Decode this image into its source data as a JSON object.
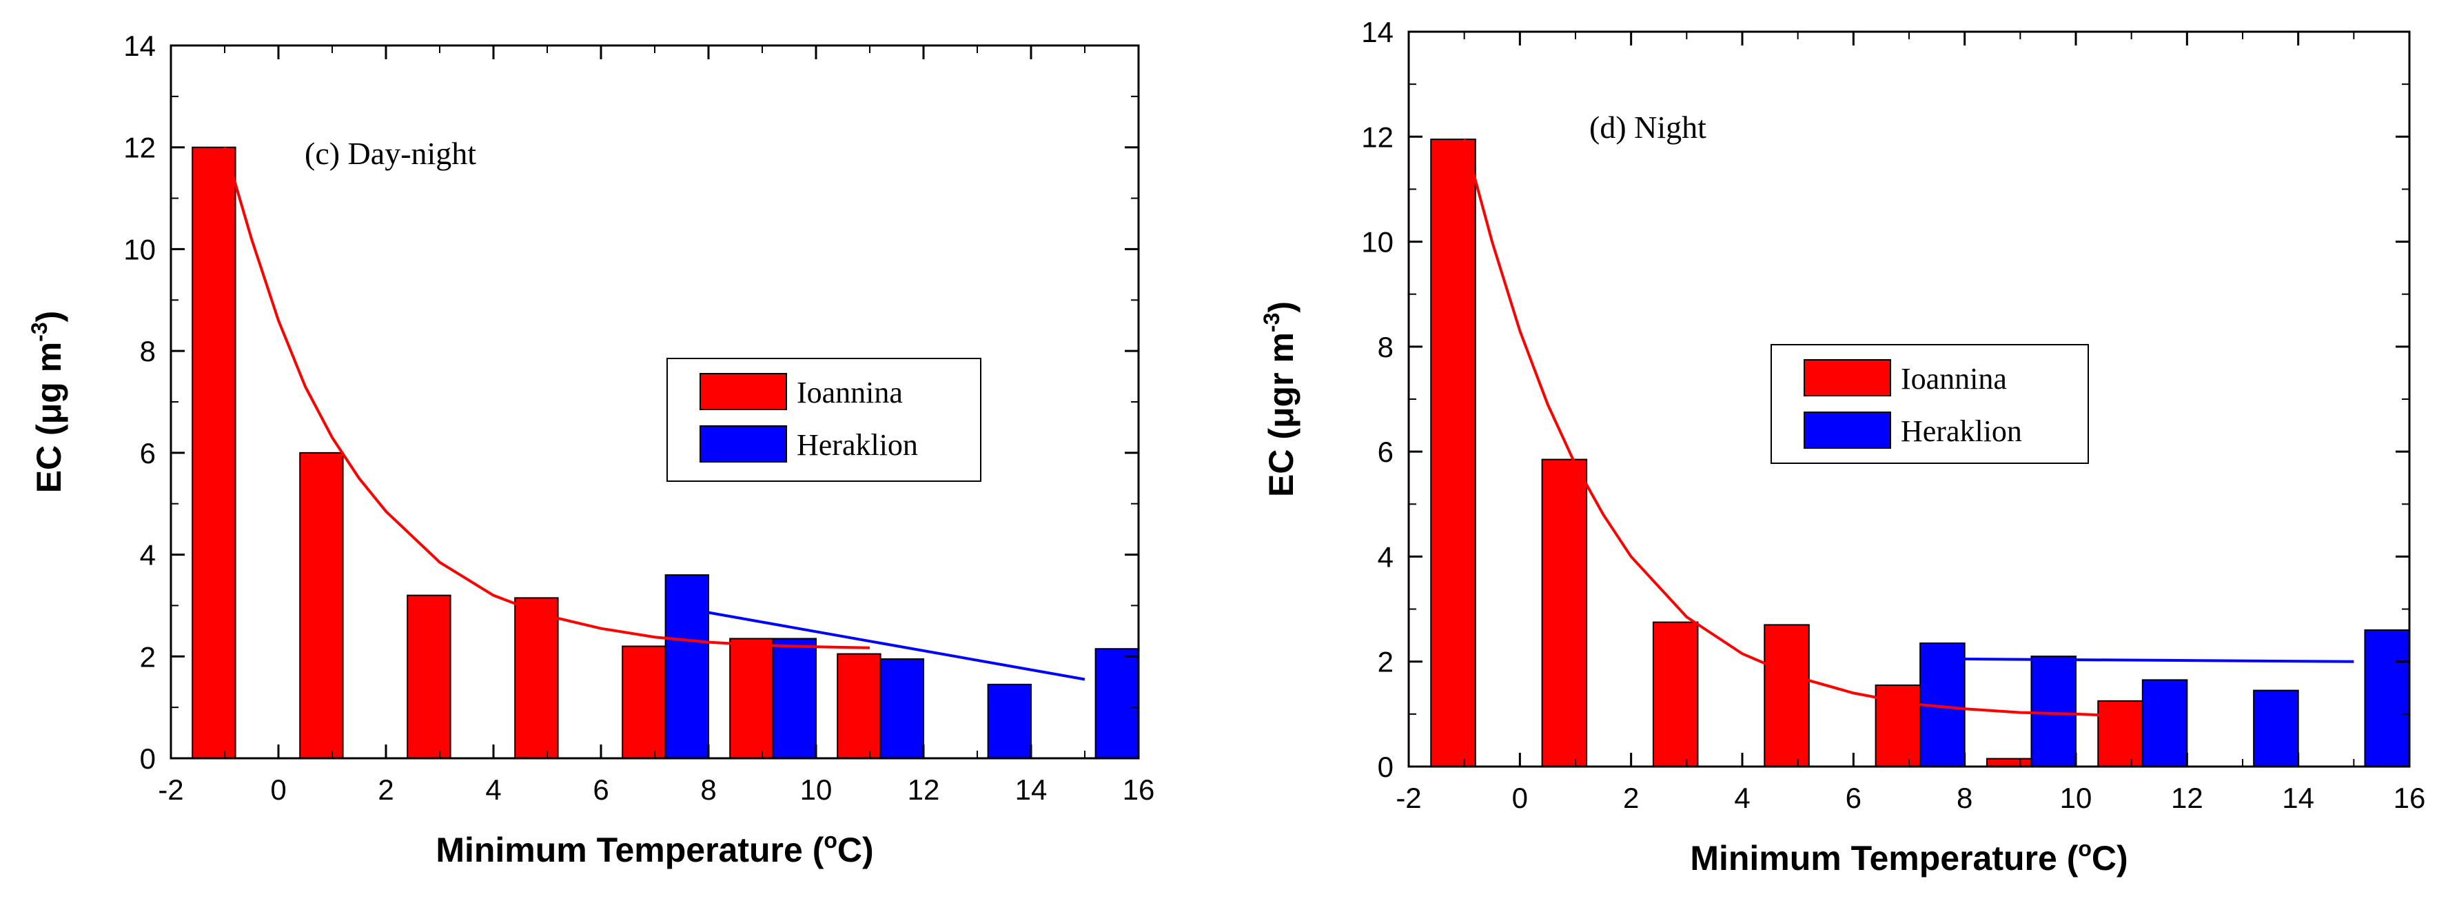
{
  "colors": {
    "ioannina": "#ff0000",
    "heraklion": "#0000ff",
    "axis": "#000000"
  },
  "chart_data": [
    {
      "type": "bar",
      "panel_label": "(c) Day-night",
      "xlabel_main": "Minimum Temperature (",
      "xlabel_sup": "o",
      "xlabel_end": "C)",
      "ylabel_main": "EC (μg m",
      "ylabel_sup": "-3",
      "ylabel_end": ")",
      "xlim": [
        -2,
        16
      ],
      "ylim": [
        0,
        14
      ],
      "xticks": [
        "-2",
        "0",
        "2",
        "4",
        "6",
        "8",
        "10",
        "12",
        "14",
        "16"
      ],
      "yticks": [
        "0",
        "2",
        "4",
        "6",
        "8",
        "10",
        "12",
        "14"
      ],
      "legend_position": "center-right",
      "series": [
        {
          "name": "Ioannina",
          "color": "#ff0000",
          "bars": [
            {
              "x": -1.6,
              "y": 12.0
            },
            {
              "x": 0.4,
              "y": 6.0
            },
            {
              "x": 2.4,
              "y": 3.2
            },
            {
              "x": 4.4,
              "y": 3.15
            },
            {
              "x": 6.4,
              "y": 2.2
            },
            {
              "x": 8.4,
              "y": 2.35
            },
            {
              "x": 10.4,
              "y": 2.05
            }
          ]
        },
        {
          "name": "Heraklion",
          "color": "#0000ff",
          "bars": [
            {
              "x": 7.2,
              "y": 3.6
            },
            {
              "x": 9.2,
              "y": 2.35
            },
            {
              "x": 11.2,
              "y": 1.95
            },
            {
              "x": 13.2,
              "y": 1.45
            },
            {
              "x": 15.2,
              "y": 2.15
            }
          ]
        }
      ],
      "fit_lines": [
        {
          "series": "Ioannina",
          "color": "#ff0000",
          "points": [
            [
              -1.0,
              12.0
            ],
            [
              -0.5,
              10.2
            ],
            [
              0,
              8.6
            ],
            [
              0.5,
              7.3
            ],
            [
              1,
              6.3
            ],
            [
              1.5,
              5.5
            ],
            [
              2,
              4.85
            ],
            [
              3,
              3.85
            ],
            [
              4,
              3.2
            ],
            [
              5,
              2.8
            ],
            [
              6,
              2.55
            ],
            [
              7,
              2.38
            ],
            [
              8,
              2.28
            ],
            [
              9,
              2.22
            ],
            [
              10,
              2.19
            ],
            [
              11,
              2.17
            ]
          ]
        },
        {
          "series": "Heraklion",
          "color": "#0000ff",
          "points": [
            [
              7.8,
              2.9
            ],
            [
              15.0,
              1.55
            ]
          ]
        }
      ]
    },
    {
      "type": "bar",
      "panel_label": "(d) Night",
      "xlabel_main": "Minimum Temperature (",
      "xlabel_sup": "o",
      "xlabel_end": "C)",
      "ylabel_main": "EC (μgr m",
      "ylabel_sup": "-3",
      "ylabel_end": ")",
      "xlim": [
        -2,
        16
      ],
      "ylim": [
        0,
        14
      ],
      "xticks": [
        "-2",
        "0",
        "2",
        "4",
        "6",
        "8",
        "10",
        "12",
        "14",
        "16"
      ],
      "yticks": [
        "0",
        "2",
        "4",
        "6",
        "8",
        "10",
        "12",
        "14"
      ],
      "legend_position": "center-right",
      "series": [
        {
          "name": "Ioannina",
          "color": "#ff0000",
          "bars": [
            {
              "x": -1.6,
              "y": 11.95
            },
            {
              "x": 0.4,
              "y": 5.85
            },
            {
              "x": 2.4,
              "y": 2.75
            },
            {
              "x": 4.4,
              "y": 2.7
            },
            {
              "x": 6.4,
              "y": 1.55
            },
            {
              "x": 8.4,
              "y": 0.15
            },
            {
              "x": 10.4,
              "y": 1.25
            }
          ]
        },
        {
          "name": "Heraklion",
          "color": "#0000ff",
          "bars": [
            {
              "x": 7.2,
              "y": 2.35
            },
            {
              "x": 9.2,
              "y": 2.1
            },
            {
              "x": 11.2,
              "y": 1.65
            },
            {
              "x": 13.2,
              "y": 1.45
            },
            {
              "x": 15.2,
              "y": 2.6
            }
          ]
        }
      ],
      "fit_lines": [
        {
          "series": "Ioannina",
          "color": "#ff0000",
          "points": [
            [
              -1.0,
              11.95
            ],
            [
              -0.5,
              10.0
            ],
            [
              0,
              8.3
            ],
            [
              0.5,
              6.9
            ],
            [
              1,
              5.75
            ],
            [
              1.5,
              4.8
            ],
            [
              2,
              4.0
            ],
            [
              3,
              2.85
            ],
            [
              4,
              2.15
            ],
            [
              5,
              1.7
            ],
            [
              6,
              1.4
            ],
            [
              7,
              1.2
            ],
            [
              8,
              1.1
            ],
            [
              9,
              1.03
            ],
            [
              10,
              1.0
            ],
            [
              10.5,
              0.98
            ]
          ]
        },
        {
          "series": "Heraklion",
          "color": "#0000ff",
          "points": [
            [
              7.8,
              2.05
            ],
            [
              15.0,
              2.0
            ]
          ]
        }
      ]
    }
  ]
}
